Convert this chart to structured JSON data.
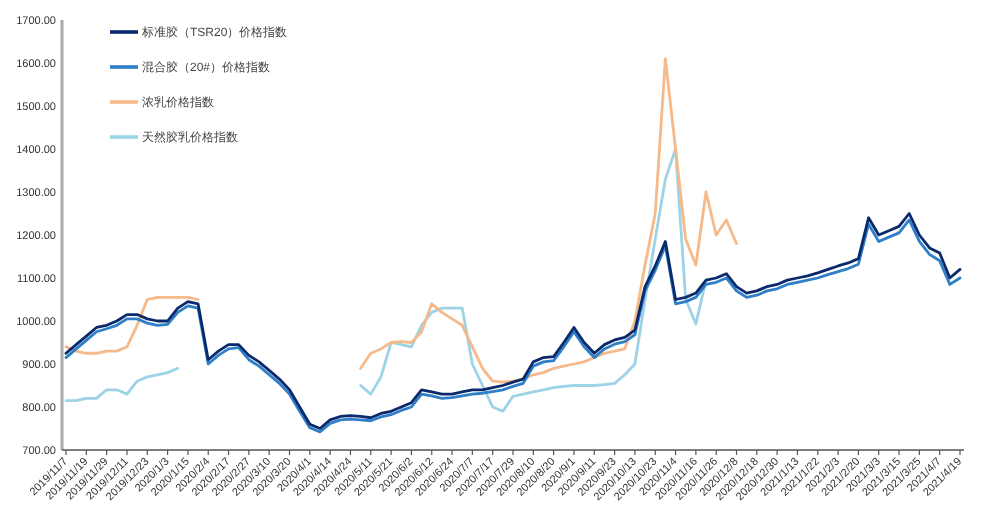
{
  "chart_data": {
    "type": "line",
    "categories": [
      "2019/11/7",
      null,
      "2019/11/19",
      null,
      "2019/11/29",
      null,
      "2019/12/11",
      null,
      "2019/12/23",
      null,
      "2020/1/3",
      null,
      "2020/1/15",
      null,
      "2020/2/4",
      null,
      "2020/2/17",
      null,
      "2020/2/27",
      null,
      "2020/3/10",
      null,
      "2020/3/20",
      null,
      "2020/4/1",
      null,
      "2020/4/14",
      null,
      "2020/4/24",
      null,
      "2020/5/11",
      null,
      "2020/5/21",
      null,
      "2020/6/2",
      null,
      "2020/6/12",
      null,
      "2020/6/24",
      null,
      "2020/7/7",
      null,
      "2020/7/17",
      null,
      "2020/7/29",
      null,
      "2020/8/10",
      null,
      "2020/8/20",
      null,
      "2020/9/1",
      null,
      "2020/9/11",
      null,
      "2020/9/23",
      null,
      "2020/10/13",
      null,
      "2020/10/23",
      null,
      "2020/11/4",
      null,
      "2020/11/16",
      null,
      "2020/11/26",
      null,
      "2020/12/8",
      null,
      "2020/12/18",
      null,
      "2020/12/30",
      null,
      "2021/1/13",
      null,
      "2021/1/22",
      null,
      "2021/2/3",
      null,
      "2021/2/20",
      null,
      "2021/3/3",
      null,
      "2021/3/15",
      null,
      "2021/3/25",
      null,
      "2021/4/7",
      null,
      "2021/4/19"
    ],
    "series": [
      {
        "name": "标准胶（TSR20）价格指数",
        "color": "#0b2a6b",
        "values": [
          925,
          945,
          965,
          985,
          990,
          1000,
          1015,
          1015,
          1005,
          1000,
          1000,
          1030,
          1045,
          1040,
          910,
          930,
          945,
          945,
          920,
          905,
          885,
          865,
          840,
          800,
          760,
          750,
          770,
          778,
          780,
          778,
          775,
          785,
          790,
          800,
          810,
          840,
          835,
          830,
          830,
          835,
          840,
          840,
          845,
          850,
          858,
          865,
          905,
          915,
          917,
          950,
          985,
          950,
          925,
          945,
          956,
          962,
          979,
          1080,
          1128,
          1185,
          1050,
          1055,
          1065,
          1095,
          1100,
          1110,
          1080,
          1065,
          1070,
          1080,
          1085,
          1095,
          1100,
          1105,
          1112,
          1120,
          1128,
          1135,
          1145,
          1240,
          1200,
          1210,
          1220,
          1250,
          1200,
          1170,
          1158,
          1100,
          1120
        ]
      },
      {
        "name": "混合胶（20#）价格指数",
        "color": "#2e7fc7",
        "values": [
          915,
          935,
          955,
          975,
          982,
          990,
          1005,
          1005,
          995,
          990,
          992,
          1020,
          1035,
          1030,
          900,
          920,
          935,
          938,
          910,
          895,
          875,
          855,
          830,
          790,
          752,
          742,
          762,
          770,
          772,
          770,
          768,
          777,
          782,
          792,
          800,
          830,
          826,
          820,
          822,
          826,
          830,
          832,
          836,
          840,
          848,
          855,
          895,
          905,
          908,
          940,
          975,
          940,
          915,
          935,
          946,
          952,
          968,
          1070,
          1118,
          1175,
          1040,
          1045,
          1055,
          1085,
          1090,
          1100,
          1070,
          1055,
          1060,
          1070,
          1075,
          1085,
          1090,
          1095,
          1100,
          1108,
          1115,
          1122,
          1132,
          1225,
          1185,
          1195,
          1205,
          1235,
          1185,
          1155,
          1140,
          1085,
          1100
        ]
      },
      {
        "name": "浓乳价格指数",
        "color": "#f6b98a",
        "values": [
          940,
          930,
          925,
          925,
          930,
          930,
          940,
          990,
          1050,
          1055,
          1055,
          1055,
          1055,
          1050,
          null,
          null,
          null,
          null,
          null,
          null,
          null,
          null,
          null,
          null,
          null,
          null,
          null,
          null,
          null,
          890,
          925,
          935,
          950,
          952,
          950,
          975,
          1040,
          1020,
          1005,
          990,
          940,
          890,
          860,
          858,
          860,
          865,
          875,
          880,
          890,
          895,
          900,
          905,
          915,
          925,
          930,
          935,
          1000,
          1130,
          1250,
          1610,
          1400,
          1190,
          1130,
          1300,
          1200,
          1235,
          1180,
          null,
          null,
          null,
          null,
          null,
          null,
          null,
          null,
          null,
          null,
          null,
          null,
          null,
          null,
          null,
          null,
          null,
          null,
          null,
          null,
          null,
          null
        ]
      },
      {
        "name": "天然胶乳价格指数",
        "color": "#9dd3e6",
        "values": [
          815,
          815,
          820,
          820,
          840,
          840,
          830,
          860,
          870,
          875,
          880,
          890,
          null,
          null,
          null,
          null,
          null,
          null,
          null,
          null,
          null,
          null,
          null,
          null,
          null,
          null,
          null,
          null,
          null,
          850,
          830,
          870,
          950,
          945,
          940,
          990,
          1020,
          1030,
          1030,
          1030,
          900,
          850,
          800,
          790,
          825,
          830,
          835,
          840,
          845,
          848,
          850,
          850,
          850,
          852,
          855,
          875,
          900,
          1050,
          1190,
          1330,
          1400,
          1050,
          993,
          1095,
          null,
          null,
          null,
          null,
          null,
          null,
          null,
          null,
          null,
          null,
          null,
          null,
          null,
          null,
          null,
          null,
          null,
          null,
          null,
          null,
          null,
          null,
          null,
          null,
          null
        ]
      }
    ],
    "ylim": [
      700,
      1700
    ],
    "yticks": [
      {
        "value": 700,
        "label": "700.00"
      },
      {
        "value": 800,
        "label": "800.00"
      },
      {
        "value": 900,
        "label": "900.00"
      },
      {
        "value": 1000,
        "label": "1000.00"
      },
      {
        "value": 1100,
        "label": "1100.00"
      },
      {
        "value": 1200,
        "label": "1200.00"
      },
      {
        "value": 1300,
        "label": "1300.00"
      },
      {
        "value": 1400,
        "label": "1400.00"
      },
      {
        "value": 1500,
        "label": "1500.00"
      },
      {
        "value": 1600,
        "label": "1600.00"
      },
      {
        "value": 1700,
        "label": "1700.00"
      }
    ],
    "grid": false,
    "legend": "top left",
    "marker": "none",
    "line_style": "solid"
  }
}
